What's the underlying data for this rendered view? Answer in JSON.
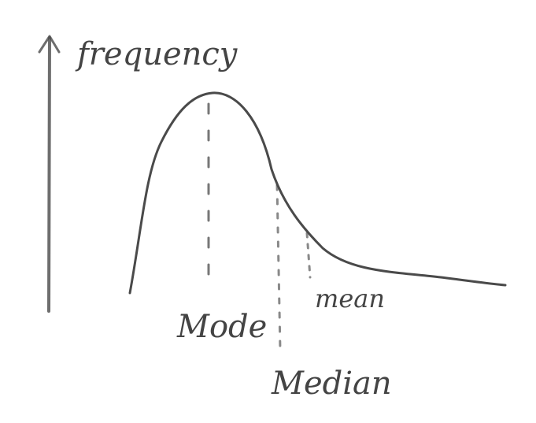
{
  "axis_label": "frequency",
  "markers": [
    {
      "label": "Mode"
    },
    {
      "label": "Median"
    },
    {
      "label": "mean"
    }
  ]
}
